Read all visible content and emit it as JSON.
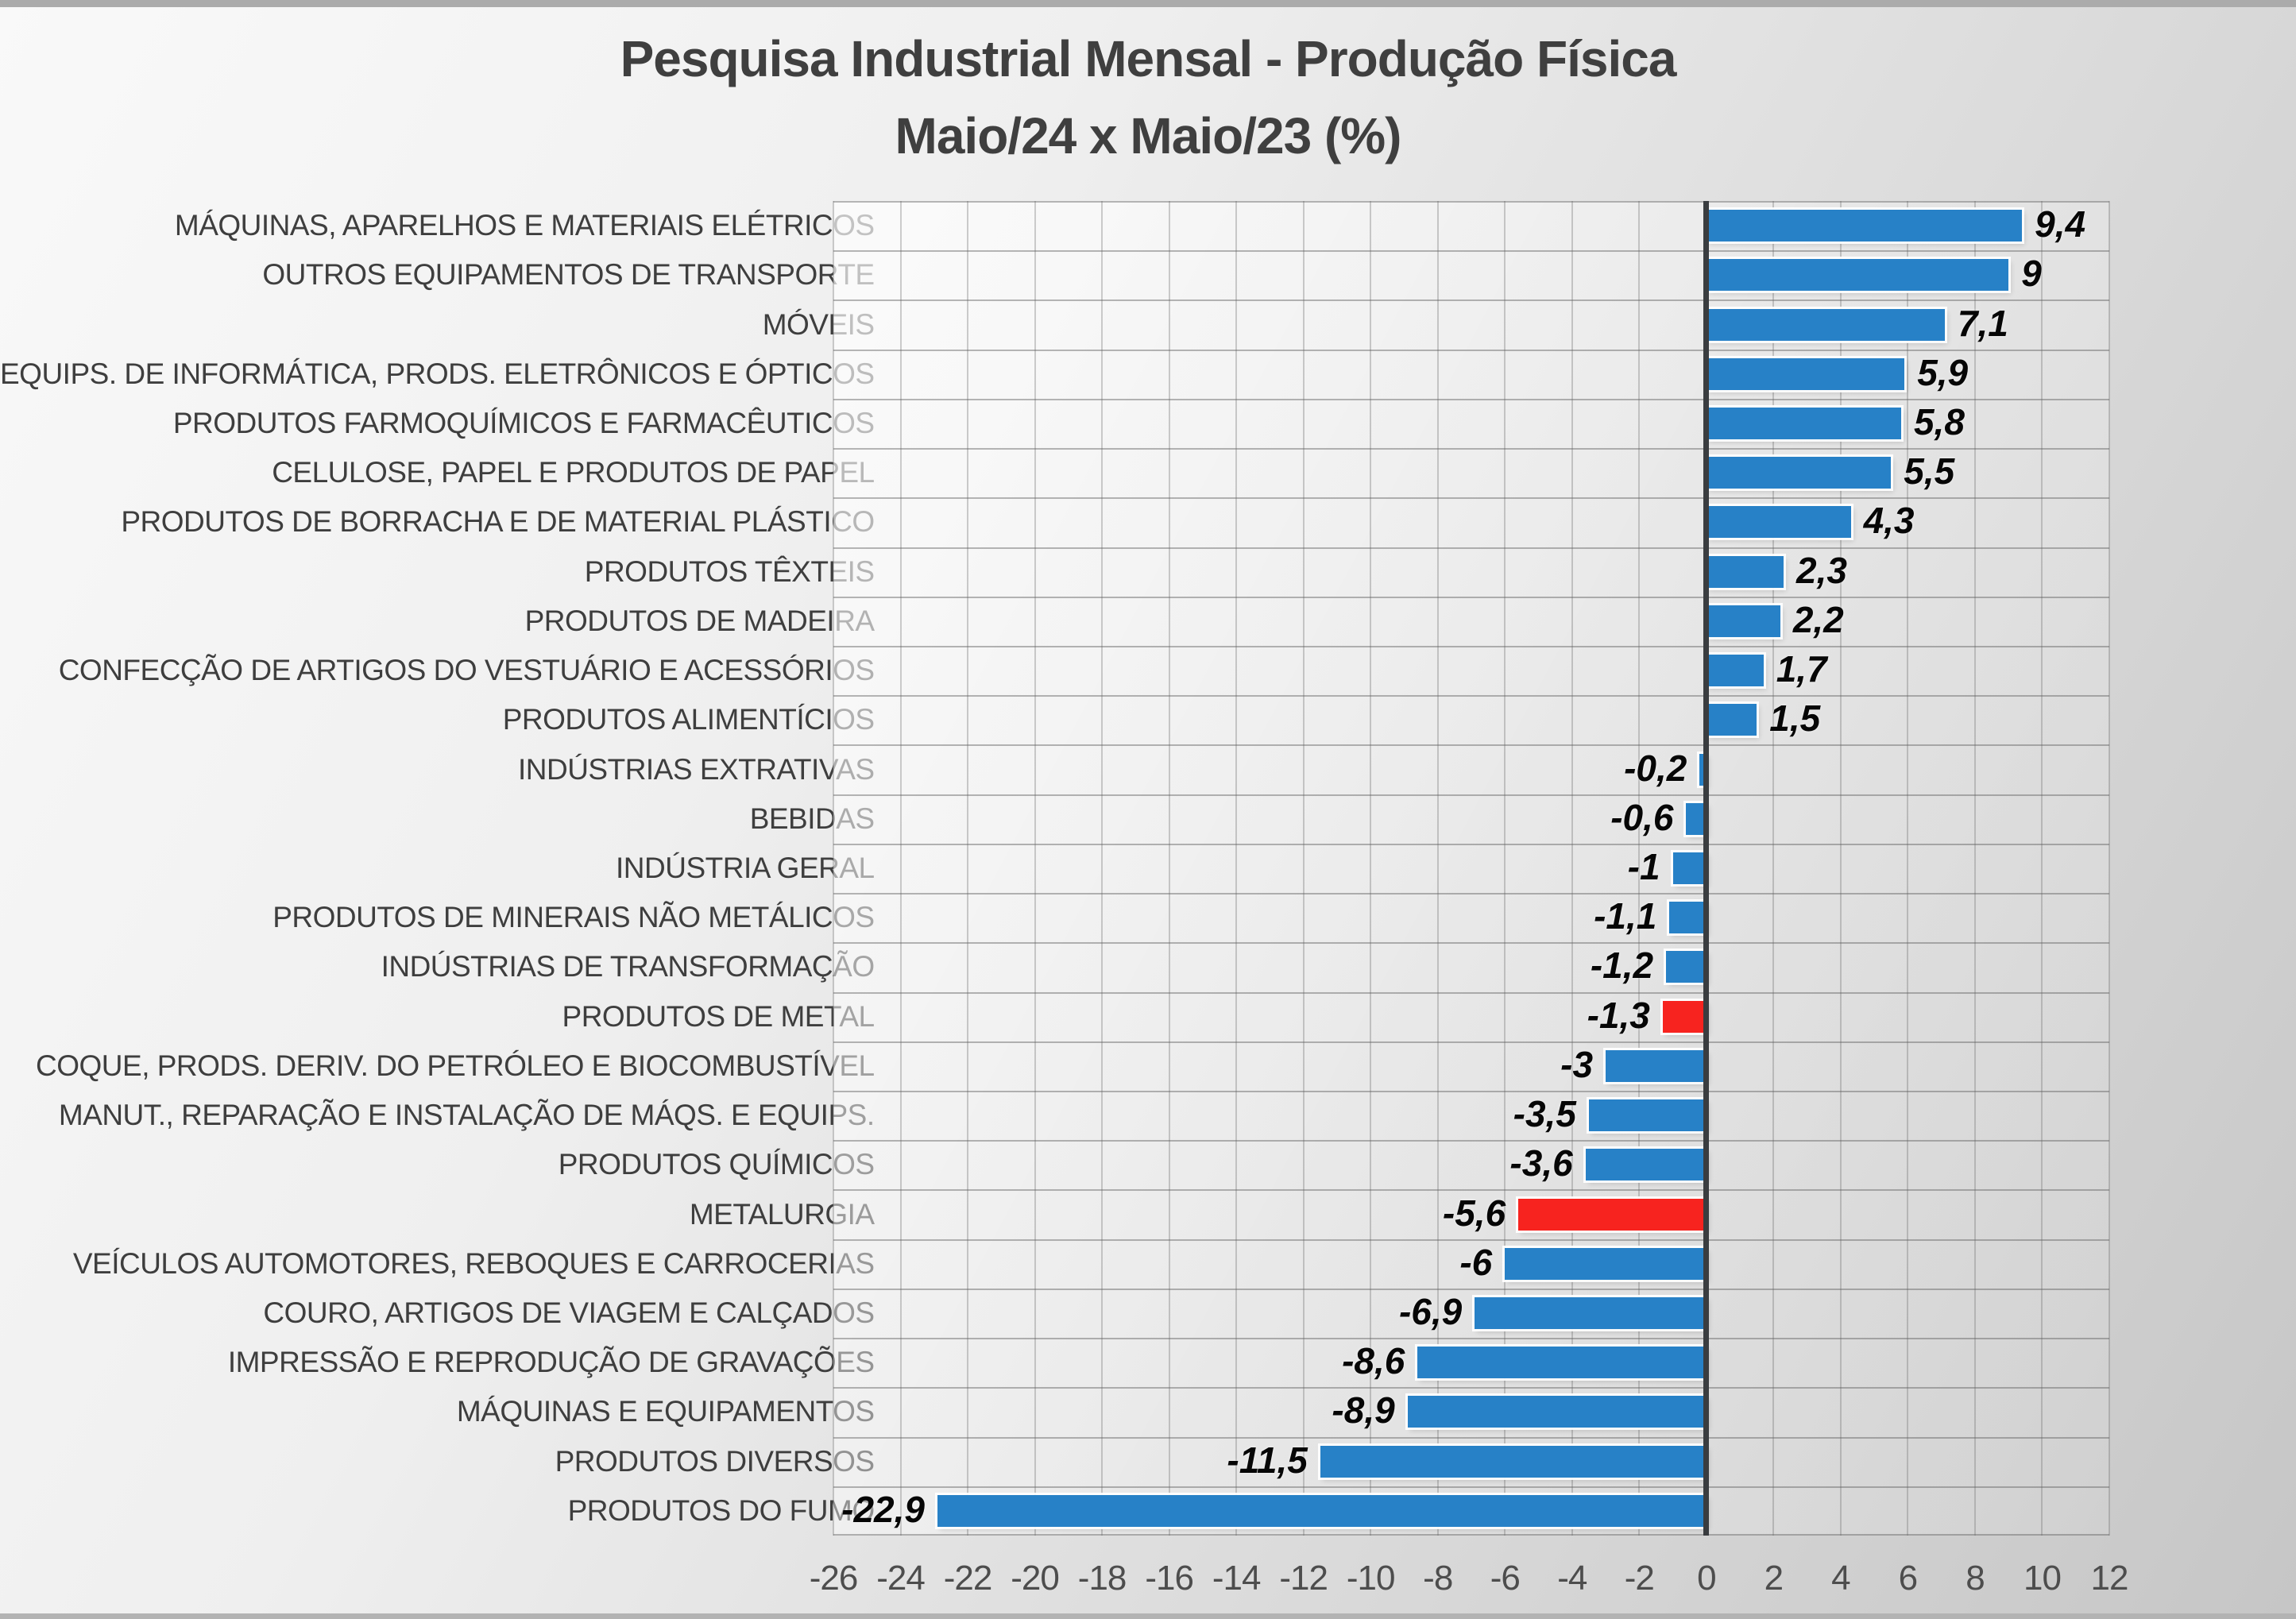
{
  "title": {
    "line1": "Pesquisa Industrial Mensal - Produção Física",
    "line2": "Maio/24 x Maio/23 (%)"
  },
  "chart_data": {
    "type": "bar",
    "orientation": "horizontal",
    "title": "Pesquisa Industrial Mensal - Produção Física",
    "subtitle": "Maio/24 x Maio/23 (%)",
    "xlim": [
      -26,
      12
    ],
    "tick_step": 2,
    "x_ticks": [
      "-26",
      "-24",
      "-22",
      "-20",
      "-18",
      "-16",
      "-14",
      "-12",
      "-10",
      "-8",
      "-6",
      "-4",
      "-2",
      "0",
      "2",
      "4",
      "6",
      "8",
      "10",
      "12"
    ],
    "grid": true,
    "legend": false,
    "categories": [
      "MÁQUINAS, APARELHOS E MATERIAIS ELÉTRICOS",
      "OUTROS EQUIPAMENTOS DE TRANSPORTE",
      "MÓVEIS",
      "EQUIPS. DE INFORMÁTICA, PRODS. ELETRÔNICOS E ÓPTICOS",
      "PRODUTOS FARMOQUÍMICOS E FARMACÊUTICOS",
      "CELULOSE, PAPEL E PRODUTOS DE PAPEL",
      "PRODUTOS DE BORRACHA E DE MATERIAL PLÁSTICO",
      "PRODUTOS TÊXTEIS",
      "PRODUTOS DE MADEIRA",
      "CONFECÇÃO DE ARTIGOS DO VESTUÁRIO E ACESSÓRIOS",
      "PRODUTOS ALIMENTÍCIOS",
      "INDÚSTRIAS EXTRATIVAS",
      "BEBIDAS",
      "INDÚSTRIA GERAL",
      "PRODUTOS DE MINERAIS NÃO METÁLICOS",
      "INDÚSTRIAS DE TRANSFORMAÇÃO",
      "PRODUTOS DE METAL",
      "COQUE, PRODS. DERIV. DO PETRÓLEO E BIOCOMBUSTÍVEL",
      "MANUT., REPARAÇÃO E INSTALAÇÃO DE MÁQS. E EQUIPS.",
      "PRODUTOS QUÍMICOS",
      "METALURGIA",
      "VEÍCULOS AUTOMOTORES, REBOQUES E CARROCERIAS",
      "COURO, ARTIGOS DE VIAGEM E CALÇADOS",
      "IMPRESSÃO E REPRODUÇÃO DE GRAVAÇÕES",
      "MÁQUINAS E EQUIPAMENTOS",
      "PRODUTOS DIVERSOS",
      "PRODUTOS DO FUMO"
    ],
    "values": [
      9.4,
      9,
      7.1,
      5.9,
      5.8,
      5.5,
      4.3,
      2.3,
      2.2,
      1.7,
      1.5,
      -0.2,
      -0.6,
      -1,
      -1.1,
      -1.2,
      -1.3,
      -3,
      -3.5,
      -3.6,
      -5.6,
      -6,
      -6.9,
      -8.6,
      -8.9,
      -11.5,
      -22.9
    ],
    "value_labels": [
      "9,4",
      "9",
      "7,1",
      "5,9",
      "5,8",
      "5,5",
      "4,3",
      "2,3",
      "2,2",
      "1,7",
      "1,5",
      "-0,2",
      "-0,6",
      "-1",
      "-1,1",
      "-1,2",
      "-1,3",
      "-3",
      "-3,5",
      "-3,6",
      "-5,6",
      "-6",
      "-6,9",
      "-8,6",
      "-8,9",
      "-11,5",
      "-22,9"
    ],
    "highlight_indices": [
      16,
      20
    ],
    "bar_colors": {
      "default": "#2781C7",
      "highlight": "#F7231F"
    }
  },
  "colors": {
    "background_top_left": "#F9F9F9",
    "background_bottom_right": "#C6C6C6",
    "zero_line": "#3A3D40",
    "grid_line": "#ABABAB",
    "title_text": "#3F3F3F",
    "category_text": "#3E3E3E",
    "axis_text": "#4D4D4D",
    "value_text": "#060606"
  }
}
